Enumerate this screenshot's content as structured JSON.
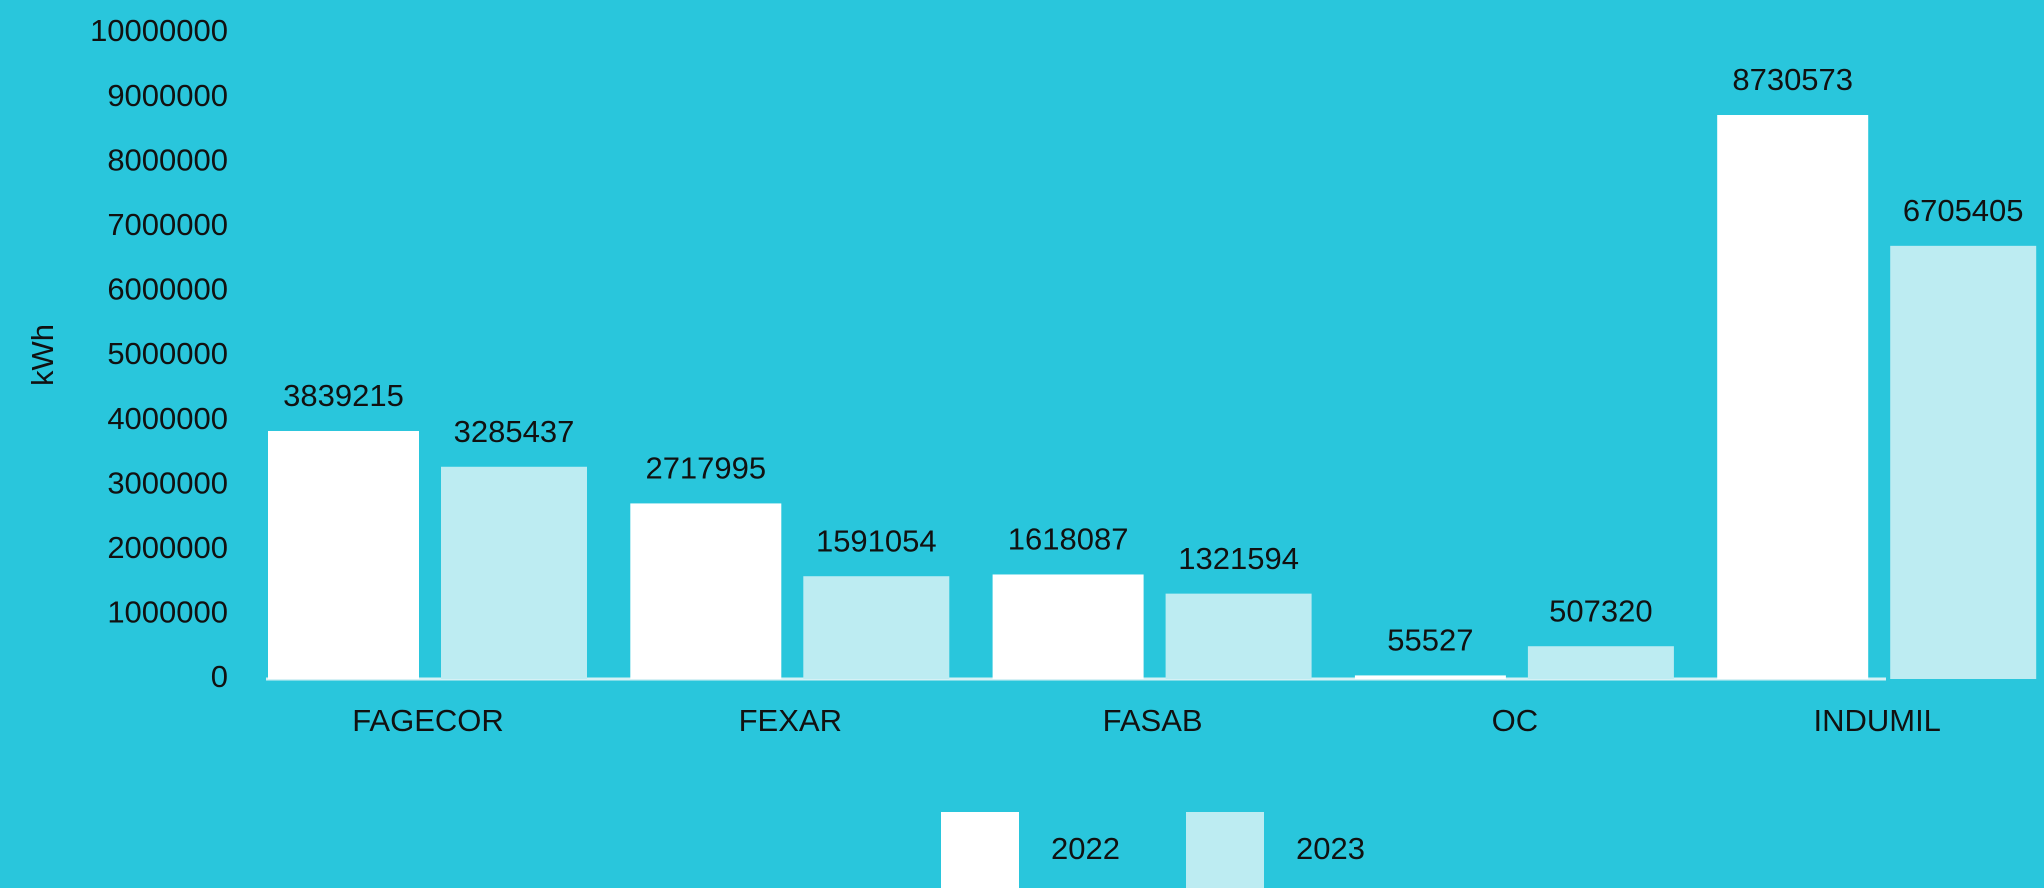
{
  "chart_data": {
    "type": "bar",
    "y_label": "kWh",
    "categories": [
      "FAGECOR",
      "FEXAR",
      "FASAB",
      "OC",
      "INDUMIL"
    ],
    "series": [
      {
        "name": "2022",
        "color": "#ffffff",
        "values": [
          3839215,
          2717995,
          1618087,
          55527,
          8730573
        ]
      },
      {
        "name": "2023",
        "color": "#bdecf2",
        "values": [
          3285437,
          1591054,
          1321594,
          507320,
          6705405
        ]
      }
    ],
    "ylim": [
      0,
      10000000
    ],
    "yticks": [
      0,
      1000000,
      2000000,
      3000000,
      4000000,
      5000000,
      6000000,
      7000000,
      8000000,
      9000000,
      10000000
    ],
    "legend": "bottom",
    "background": "#29c6dc"
  }
}
